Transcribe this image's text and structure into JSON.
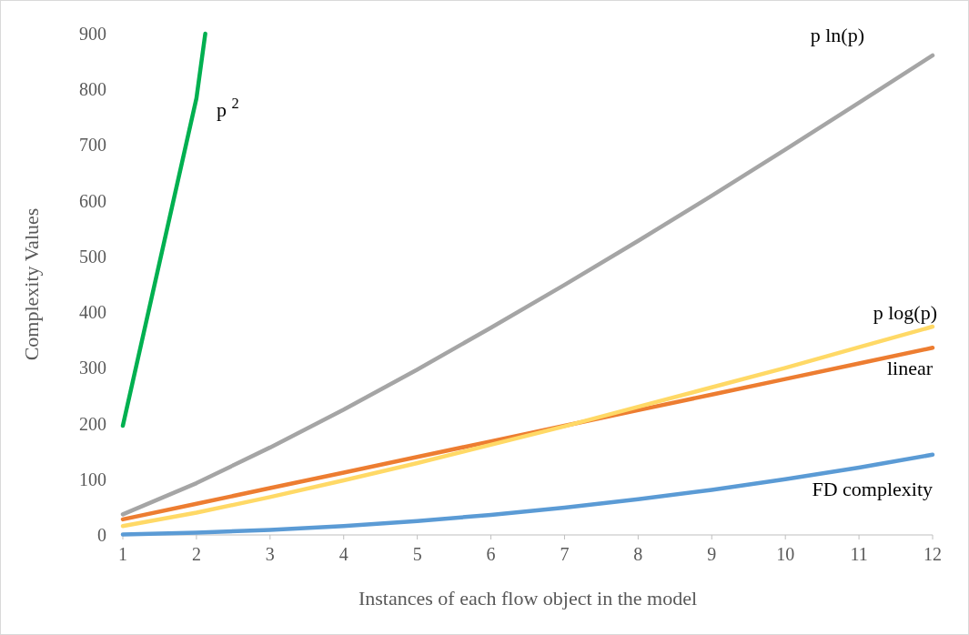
{
  "chart_data": {
    "type": "line",
    "xlabel": "Instances of each flow object in the model",
    "ylabel": "Complexity Values",
    "x": [
      1,
      2,
      3,
      4,
      5,
      6,
      7,
      8,
      9,
      10,
      11,
      12
    ],
    "xlim": [
      1,
      12
    ],
    "xticks": [
      1,
      2,
      3,
      4,
      5,
      6,
      7,
      8,
      9,
      10,
      11,
      12
    ],
    "ylim": [
      0,
      900
    ],
    "yticks": [
      0,
      100,
      200,
      300,
      400,
      500,
      600,
      700,
      800,
      900
    ],
    "grid": false,
    "marker": "none",
    "line_style": "solid",
    "series": [
      {
        "name": "FD complexity",
        "color": "#5b9bd5",
        "values": [
          1,
          4,
          9,
          16,
          25,
          36,
          49,
          64,
          81,
          100,
          121,
          144
        ]
      },
      {
        "name": "linear",
        "color": "#ed7d31",
        "values": [
          28,
          56,
          84,
          112,
          140,
          168,
          196,
          224,
          252,
          280,
          308,
          336
        ]
      },
      {
        "name": "p ln(p)",
        "color": "#a5a5a5",
        "values": [
          37,
          93,
          157,
          225,
          297,
          372,
          449,
          528,
          609,
          692,
          776,
          861
        ]
      },
      {
        "name": "p log(p)",
        "color": "#ffd966",
        "values": [
          16,
          40,
          68,
          98,
          129,
          162,
          195,
          230,
          265,
          300,
          337,
          374
        ]
      },
      {
        "name": "p $^{2}$",
        "color": "#00b050",
        "x": [
          1,
          2,
          2.12
        ],
        "values": [
          196,
          784,
          900
        ]
      }
    ]
  }
}
